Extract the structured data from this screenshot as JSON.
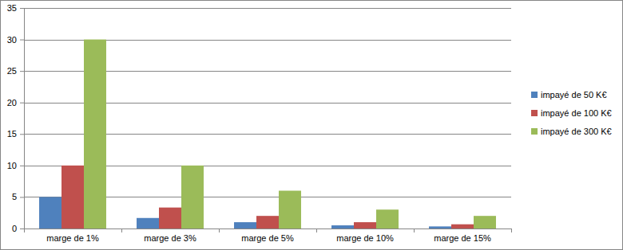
{
  "chart_data": {
    "type": "bar",
    "categories": [
      "marge de 1%",
      "marge de 3%",
      "marge de 5%",
      "marge de 10%",
      "marge de 15%"
    ],
    "series": [
      {
        "name": "impayé de 50 K€",
        "color": "#4f81bd",
        "values": [
          5,
          1.67,
          1,
          0.5,
          0.33
        ]
      },
      {
        "name": "impayé de 100 K€",
        "color": "#c0504d",
        "values": [
          10,
          3.33,
          2,
          1,
          0.67
        ]
      },
      {
        "name": "impayé de 300 K€",
        "color": "#9bbb59",
        "values": [
          30,
          10,
          6,
          3,
          2
        ]
      }
    ],
    "ylim": [
      0,
      35
    ],
    "yticks": [
      0,
      5,
      10,
      15,
      20,
      25,
      30,
      35
    ],
    "grid": true,
    "legend": "right"
  }
}
